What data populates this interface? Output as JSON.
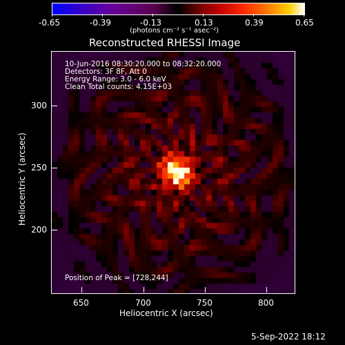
{
  "colorbar": {
    "ticks": [
      "-0.65",
      "-0.39",
      "-0.13",
      "0.13",
      "0.39",
      "0.65"
    ],
    "unit_label": "(photons cm⁻² s⁻¹ asec⁻²)",
    "min": -0.65,
    "max": 0.65
  },
  "title": "Reconstructed RHESSI Image",
  "info": {
    "line1": "10-Jun-2016 08:30:20.000 to 08:32:20.000",
    "line2": "Detectors: 3F 8F, Att 0",
    "line3": "Energy Range: 3.0 - 6.0 keV",
    "line4": "Clean     Total counts: 4.15E+03"
  },
  "peak_text": "Position of Peak = [728,244]",
  "xlabel": "Heliocentric X (arcsec)",
  "ylabel": "Heliocentric Y (arcsec)",
  "xticks": [
    "650",
    "700",
    "750",
    "800"
  ],
  "yticks": [
    "200",
    "250",
    "300"
  ],
  "timestamp": "5-Sep-2022 18:12",
  "chart_data": {
    "type": "heatmap",
    "title": "Reconstructed RHESSI Image",
    "xlabel": "Heliocentric X (arcsec)",
    "ylabel": "Heliocentric Y (arcsec)",
    "xlim": [
      628,
      822
    ],
    "ylim": [
      147,
      340
    ],
    "peak": [
      728,
      244
    ],
    "colormap": "red-temperature"
  }
}
